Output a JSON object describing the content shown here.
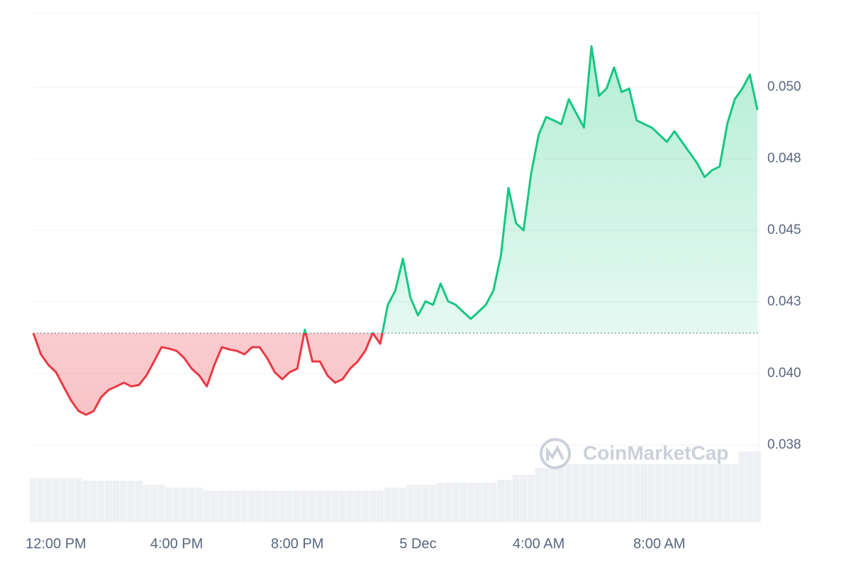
{
  "chart_data": {
    "type": "line",
    "watermark": "CoinMarketCap",
    "categories": [
      null,
      null,
      null,
      "12:00 PM",
      null,
      null,
      null,
      null,
      null,
      null,
      null,
      null,
      null,
      null,
      null,
      null,
      null,
      null,
      null,
      "4:00 PM",
      null,
      null,
      null,
      null,
      null,
      null,
      null,
      null,
      null,
      null,
      null,
      null,
      null,
      null,
      null,
      "8:00 PM",
      null,
      null,
      null,
      null,
      null,
      null,
      null,
      null,
      null,
      null,
      null,
      null,
      null,
      null,
      null,
      "5 Dec",
      null,
      null,
      null,
      null,
      null,
      null,
      null,
      null,
      null,
      null,
      null,
      null,
      null,
      null,
      null,
      "4:00 AM",
      null,
      null,
      null,
      null,
      null,
      null,
      null,
      null,
      null,
      null,
      null,
      null,
      null,
      null,
      null,
      "8:00 AM",
      null,
      null,
      null,
      null,
      null,
      null,
      null,
      null,
      null,
      null,
      null,
      null,
      null
    ],
    "values": [
      0.04141,
      0.04067,
      0.0403,
      0.04005,
      0.03955,
      0.03906,
      0.03869,
      0.03856,
      0.03869,
      0.03918,
      0.03943,
      0.03955,
      0.03968,
      0.03955,
      0.0396,
      0.03993,
      0.04042,
      0.04092,
      0.04087,
      0.04079,
      0.04054,
      0.04017,
      0.03993,
      0.03955,
      0.0403,
      0.04092,
      0.04084,
      0.04079,
      0.04067,
      0.04092,
      0.04092,
      0.04054,
      0.04005,
      0.0398,
      0.04005,
      0.04017,
      0.04153,
      0.04042,
      0.04042,
      0.03993,
      0.03968,
      0.0398,
      0.04017,
      0.04042,
      0.04079,
      0.04141,
      0.04104,
      0.0424,
      0.0429,
      0.04401,
      0.04265,
      0.04203,
      0.04252,
      0.0424,
      0.04314,
      0.04252,
      0.0424,
      0.04215,
      0.04191,
      0.04215,
      0.0424,
      0.0429,
      0.04413,
      0.04648,
      0.04525,
      0.045,
      0.04698,
      0.04834,
      0.04896,
      0.04884,
      0.04871,
      0.04958,
      0.04908,
      0.04859,
      0.05143,
      0.0497,
      0.04995,
      0.05069,
      0.04983,
      0.04995,
      0.04884,
      0.04871,
      0.04859,
      0.04834,
      0.04809,
      0.04846,
      0.04809,
      0.04772,
      0.04735,
      0.04686,
      0.0471,
      0.04723,
      0.04871,
      0.04958,
      0.04995,
      0.05044,
      0.04921
    ],
    "volume": [
      62,
      62,
      62,
      62,
      62,
      62,
      62,
      59,
      59,
      59,
      59,
      59,
      59,
      59,
      59,
      53,
      53,
      53,
      49,
      49,
      49,
      49,
      49,
      45,
      45,
      45,
      45,
      45,
      45,
      45,
      45,
      45,
      45,
      45,
      45,
      45,
      45,
      45,
      45,
      45,
      45,
      45,
      45,
      45,
      45,
      45,
      45,
      49,
      49,
      49,
      53,
      53,
      53,
      53,
      56,
      56,
      56,
      56,
      56,
      56,
      56,
      56,
      60,
      60,
      67,
      67,
      67,
      77,
      77,
      77,
      82,
      82,
      82,
      82,
      82,
      82,
      82,
      82,
      82,
      82,
      82,
      82,
      82,
      82,
      82,
      82,
      82,
      82,
      82,
      82,
      82,
      82,
      82,
      82,
      100,
      100,
      100
    ],
    "baseline": 0.04141,
    "up_color": "#16c784",
    "down_color": "#ea3943",
    "ylim": [
      0.035,
      0.0525
    ],
    "yticks": [
      {
        "value": 0.0375,
        "label": "0.038"
      },
      {
        "value": 0.04,
        "label": "0.040"
      },
      {
        "value": 0.0425,
        "label": "0.043"
      },
      {
        "value": 0.045,
        "label": "0.045"
      },
      {
        "value": 0.0475,
        "label": "0.048"
      },
      {
        "value": 0.05,
        "label": "0.050"
      }
    ],
    "grid": true
  }
}
